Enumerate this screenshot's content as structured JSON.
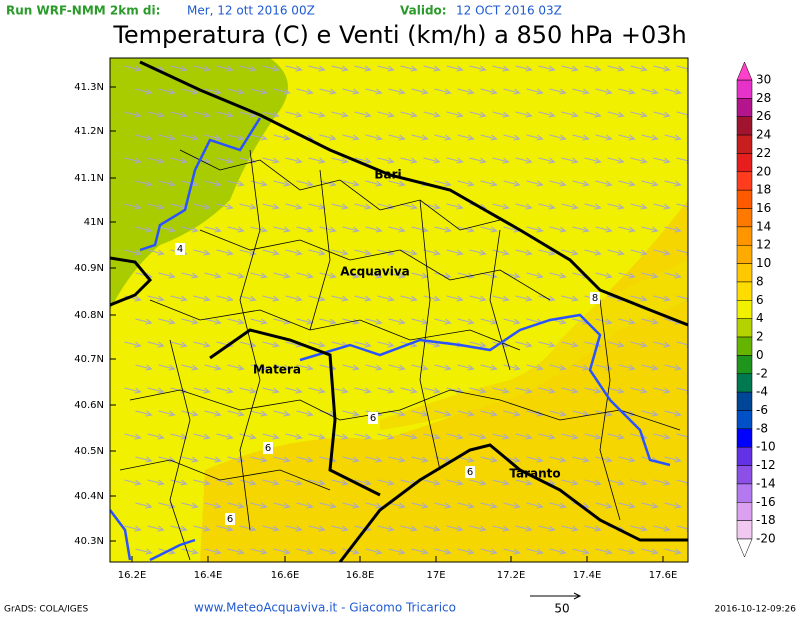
{
  "header": {
    "run_label": "Run WRF-NMM 2km di:",
    "run_date": "Mer, 12 ott 2016 00Z",
    "valid_label": "Valido:",
    "valid_date": "12 OCT 2016 03Z",
    "title": "Temperatura (C) e Venti (km/h) a 850 hPa +03h"
  },
  "map": {
    "lat_ticks": [
      "41.3N",
      "41.2N",
      "41.1N",
      "41N",
      "40.9N",
      "40.8N",
      "40.7N",
      "40.6N",
      "40.5N",
      "40.4N",
      "40.3N"
    ],
    "lon_ticks": [
      "16.2E",
      "16.4E",
      "16.6E",
      "16.8E",
      "17E",
      "17.2E",
      "17.4E",
      "17.6E"
    ],
    "cities": [
      "Bari",
      "Acquaviva",
      "Matera",
      "Taranto"
    ],
    "contour_labels": [
      "4",
      "6",
      "6",
      "6",
      "6",
      "8"
    ]
  },
  "colorbar": {
    "labels": [
      "30",
      "28",
      "26",
      "24",
      "22",
      "20",
      "18",
      "16",
      "14",
      "12",
      "10",
      "8",
      "6",
      "4",
      "2",
      "0",
      "-2",
      "-4",
      "-6",
      "-8",
      "-10",
      "-12",
      "-14",
      "-16",
      "-18",
      "-20"
    ],
    "colors": [
      "#e632c8",
      "#b4148c",
      "#a01430",
      "#c81e1e",
      "#e61e1e",
      "#ff3c1e",
      "#ff5a00",
      "#ff7800",
      "#ff9600",
      "#ffaa00",
      "#ffc800",
      "#ffdc00",
      "#f0f000",
      "#b4d200",
      "#64b400",
      "#1e961e",
      "#007850",
      "#004696",
      "#0050c8",
      "#0000ff",
      "#6432e6",
      "#8c50e6",
      "#b478f0",
      "#dca0f0",
      "#f0c8f0"
    ]
  },
  "footer": {
    "software": "GrADS: COLA/IGES",
    "credit": "www.MeteoAcquaviva.it  -  Giacomo Tricarico",
    "scale": "50",
    "timestamp": "2016-10-12-09:26"
  }
}
